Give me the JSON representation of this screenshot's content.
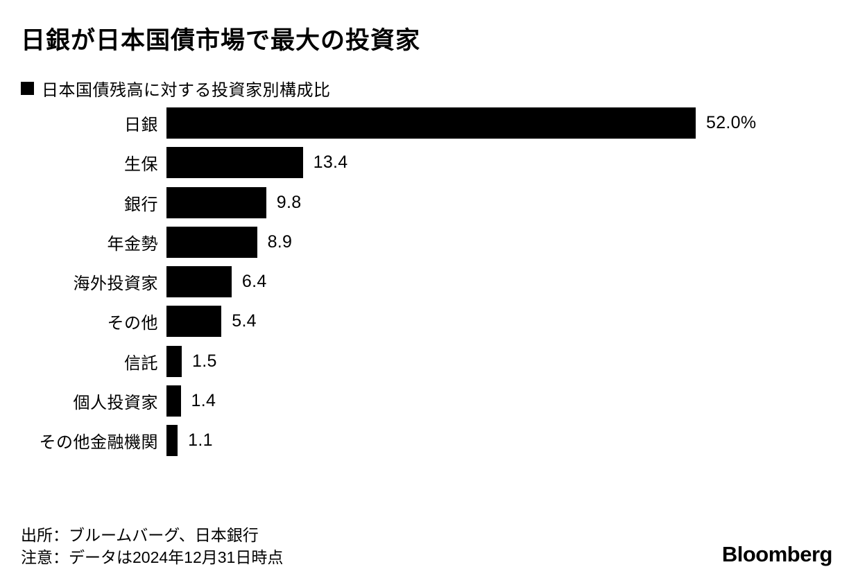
{
  "chart_data": {
    "type": "bar",
    "orientation": "horizontal",
    "title": "日銀が日本国債市場で最大の投資家",
    "legend_label": "日本国債残高に対する投資家別構成比",
    "legend_position": "top",
    "categories": [
      "日銀",
      "生保",
      "銀行",
      "年金勢",
      "海外投資家",
      "その他",
      "信託",
      "個人投資家",
      "その他金融機関"
    ],
    "values": [
      52.0,
      13.4,
      9.8,
      8.9,
      6.4,
      5.4,
      1.5,
      1.4,
      1.1
    ],
    "value_labels": [
      "52.0%",
      "13.4",
      "9.8",
      "8.9",
      "6.4",
      "5.4",
      "1.5",
      "1.4",
      "1.1"
    ],
    "unit": "%",
    "xlim": [
      0,
      52
    ],
    "grid": false,
    "bar_color": "#000000",
    "background_color": "#ffffff",
    "text_color": "#000000"
  },
  "footer": {
    "source": "出所：ブルームバーグ、日本銀行",
    "note": "注意：データは2024年12月31日時点",
    "logo_text": "Bloomberg"
  }
}
